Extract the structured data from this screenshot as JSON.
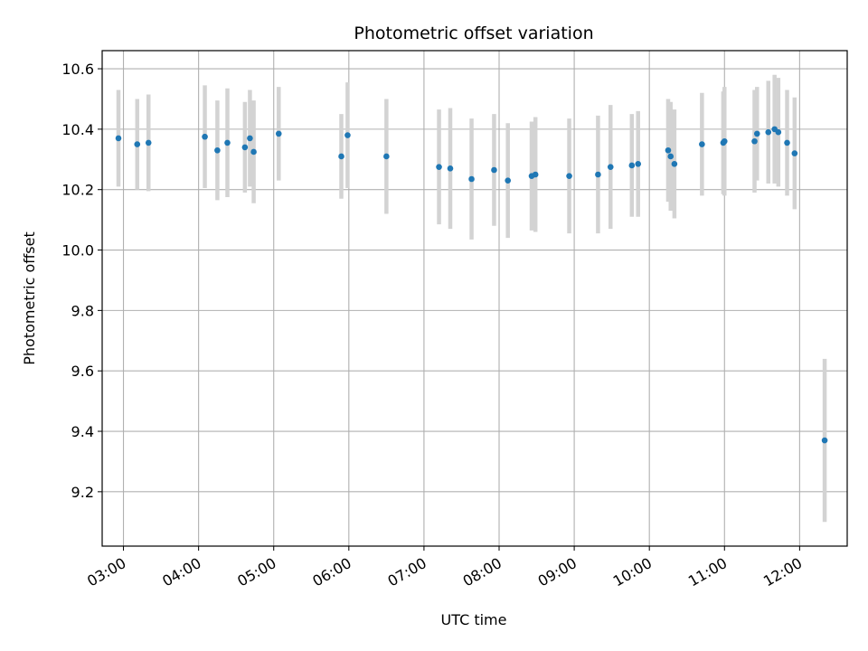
{
  "chart_data": {
    "type": "scatter",
    "title": "Photometric offset variation",
    "xlabel": "UTC time",
    "ylabel": "Photometric offset",
    "x_format": "HH:MM",
    "x_ticks": [
      "03:00",
      "04:00",
      "05:00",
      "06:00",
      "07:00",
      "08:00",
      "09:00",
      "10:00",
      "11:00",
      "12:00"
    ],
    "y_ticks": [
      "9.2",
      "9.4",
      "9.6",
      "9.8",
      "10.0",
      "10.2",
      "10.4",
      "10.6"
    ],
    "xlim": [
      "02:43",
      "12:38"
    ],
    "ylim": [
      9.02,
      10.66
    ],
    "grid": true,
    "point_color": "#1f77b4",
    "errorbar_color": "#d3d3d3",
    "points": [
      {
        "t": "02:56",
        "y": 10.37,
        "err": 0.16
      },
      {
        "t": "03:11",
        "y": 10.35,
        "err": 0.15
      },
      {
        "t": "03:20",
        "y": 10.355,
        "err": 0.16
      },
      {
        "t": "04:05",
        "y": 10.375,
        "err": 0.17
      },
      {
        "t": "04:15",
        "y": 10.33,
        "err": 0.165
      },
      {
        "t": "04:23",
        "y": 10.355,
        "err": 0.18
      },
      {
        "t": "04:37",
        "y": 10.34,
        "err": 0.15
      },
      {
        "t": "04:41",
        "y": 10.37,
        "err": 0.16
      },
      {
        "t": "04:44",
        "y": 10.325,
        "err": 0.17
      },
      {
        "t": "05:04",
        "y": 10.385,
        "err": 0.155
      },
      {
        "t": "05:54",
        "y": 10.31,
        "err": 0.14
      },
      {
        "t": "05:59",
        "y": 10.38,
        "err": 0.175
      },
      {
        "t": "06:30",
        "y": 10.31,
        "err": 0.19
      },
      {
        "t": "07:12",
        "y": 10.275,
        "err": 0.19
      },
      {
        "t": "07:21",
        "y": 10.27,
        "err": 0.2
      },
      {
        "t": "07:38",
        "y": 10.235,
        "err": 0.2
      },
      {
        "t": "07:56",
        "y": 10.265,
        "err": 0.185
      },
      {
        "t": "08:07",
        "y": 10.23,
        "err": 0.19
      },
      {
        "t": "08:26",
        "y": 10.245,
        "err": 0.18
      },
      {
        "t": "08:29",
        "y": 10.25,
        "err": 0.19
      },
      {
        "t": "08:56",
        "y": 10.245,
        "err": 0.19
      },
      {
        "t": "09:19",
        "y": 10.25,
        "err": 0.195
      },
      {
        "t": "09:29",
        "y": 10.275,
        "err": 0.205
      },
      {
        "t": "09:46",
        "y": 10.28,
        "err": 0.17
      },
      {
        "t": "09:51",
        "y": 10.285,
        "err": 0.175
      },
      {
        "t": "10:15",
        "y": 10.33,
        "err": 0.17
      },
      {
        "t": "10:17",
        "y": 10.31,
        "err": 0.18
      },
      {
        "t": "10:20",
        "y": 10.285,
        "err": 0.18
      },
      {
        "t": "10:42",
        "y": 10.35,
        "err": 0.17
      },
      {
        "t": "10:59",
        "y": 10.355,
        "err": 0.17
      },
      {
        "t": "11:00",
        "y": 10.36,
        "err": 0.18
      },
      {
        "t": "11:24",
        "y": 10.36,
        "err": 0.17
      },
      {
        "t": "11:26",
        "y": 10.385,
        "err": 0.155
      },
      {
        "t": "11:35",
        "y": 10.39,
        "err": 0.17
      },
      {
        "t": "11:40",
        "y": 10.4,
        "err": 0.18
      },
      {
        "t": "11:43",
        "y": 10.39,
        "err": 0.18
      },
      {
        "t": "11:50",
        "y": 10.355,
        "err": 0.175
      },
      {
        "t": "11:56",
        "y": 10.32,
        "err": 0.185
      },
      {
        "t": "12:20",
        "y": 9.37,
        "err": 0.27
      }
    ]
  }
}
